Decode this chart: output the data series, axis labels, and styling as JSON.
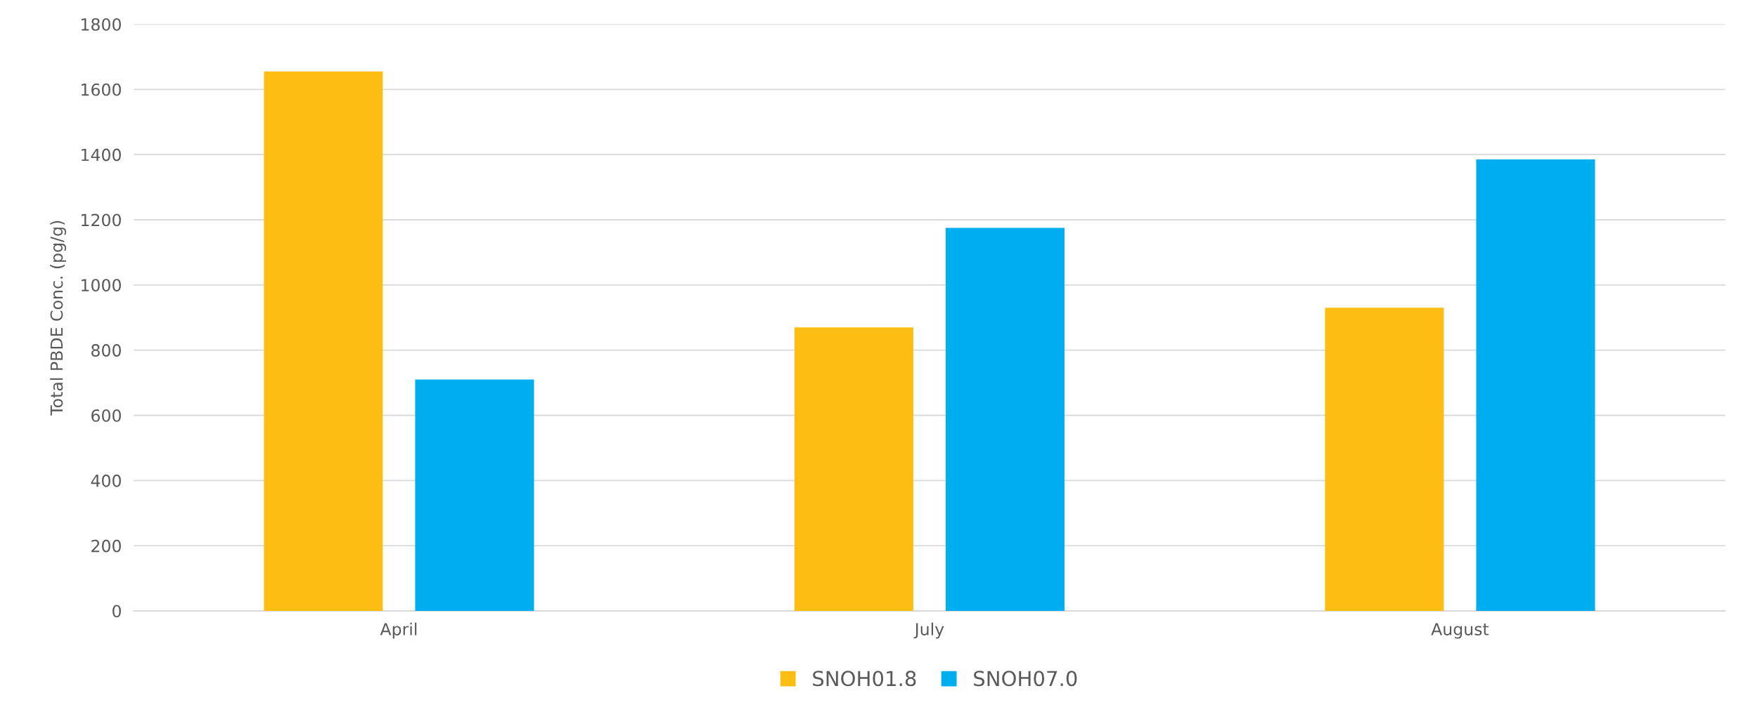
{
  "chart_data": {
    "type": "bar",
    "ylabel": "Total PBDE Conc. (pg/g)",
    "categories": [
      "April",
      "July",
      "August"
    ],
    "series": [
      {
        "name": "SNOH01.8",
        "color": "#fdbd12",
        "values": [
          1655,
          870,
          930
        ]
      },
      {
        "name": "SNOH07.0",
        "color": "#00aeef",
        "values": [
          710,
          1175,
          1385
        ]
      }
    ],
    "ylim": [
      0,
      1800
    ],
    "yticks": [
      0,
      200,
      400,
      600,
      800,
      1000,
      1200,
      1400,
      1600,
      1800
    ],
    "grid": "y",
    "legend": "bottom"
  }
}
